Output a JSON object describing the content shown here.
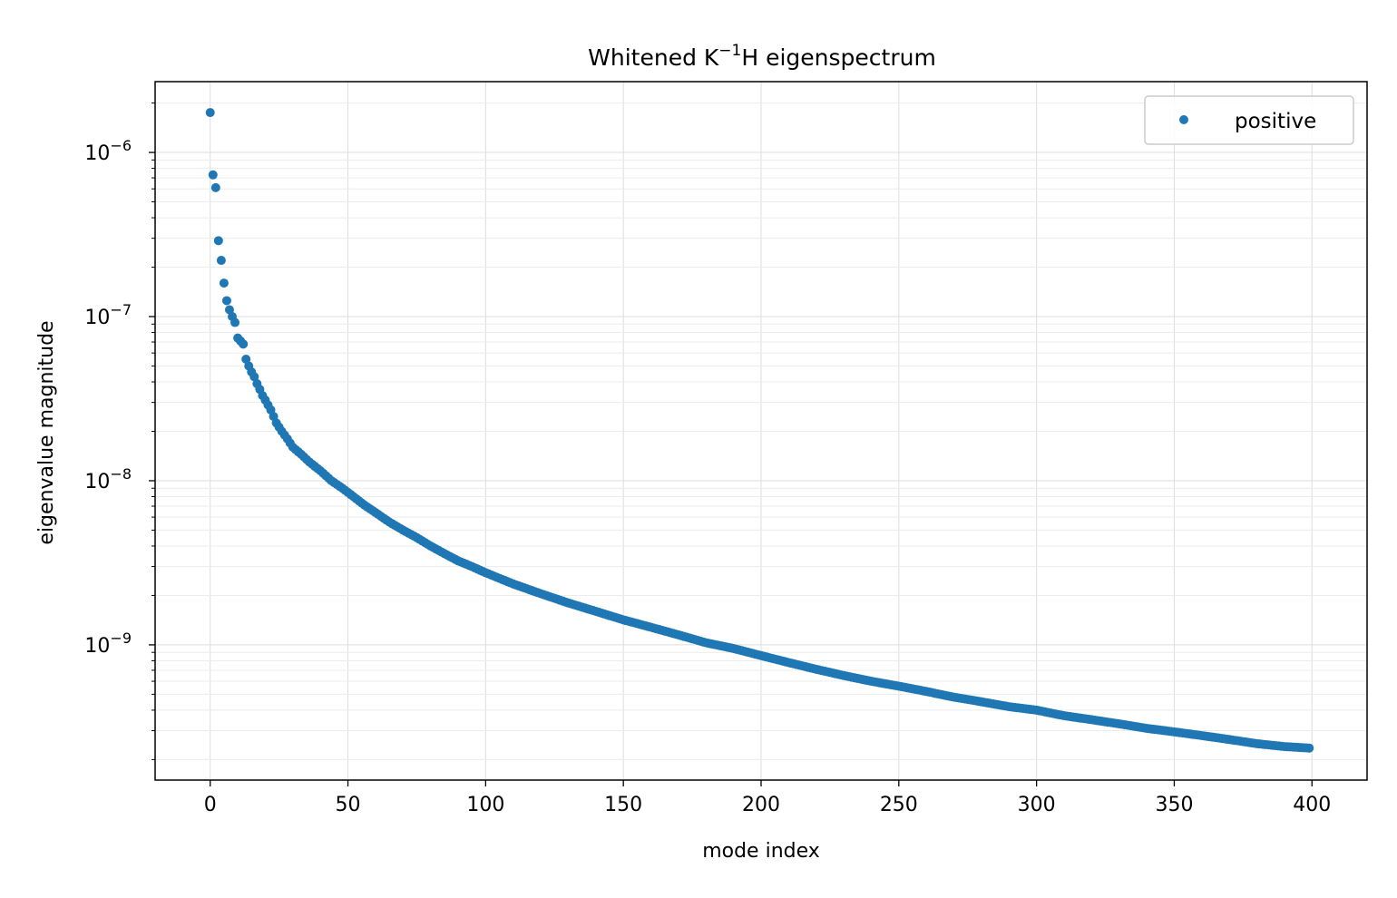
{
  "chart_data": {
    "type": "scatter",
    "title_main": "Whitened K",
    "title_sup": "−1",
    "title_rest": "H eigenspectrum",
    "xlabel": "mode index",
    "ylabel": "eigenvalue magnitude",
    "xlim": [
      -20,
      420
    ],
    "ylim": [
      1.5e-10,
      2.7e-06
    ],
    "yscale": "log",
    "grid": true,
    "legend_location": "top-right",
    "x_ticks": [
      "0",
      "50",
      "100",
      "150",
      "200",
      "250",
      "300",
      "350",
      "400"
    ],
    "y_ticks": [
      {
        "base": "10",
        "exp": "−6"
      },
      {
        "base": "10",
        "exp": "−7"
      },
      {
        "base": "10",
        "exp": "−8"
      },
      {
        "base": "10",
        "exp": "−9"
      }
    ],
    "colors": {
      "series": "#1f77b4"
    },
    "series": [
      {
        "name": "positive",
        "x": [
          0,
          1,
          2,
          3,
          4,
          5,
          6,
          7,
          8,
          9,
          10,
          11,
          12,
          13,
          14,
          15,
          16,
          17,
          18,
          19,
          20,
          22,
          24,
          26,
          28,
          30,
          33,
          36,
          40,
          44,
          48,
          52,
          56,
          60,
          65,
          70,
          75,
          80,
          85,
          90,
          95,
          100,
          110,
          120,
          130,
          140,
          150,
          160,
          170,
          180,
          190,
          200,
          210,
          220,
          230,
          240,
          250,
          260,
          270,
          280,
          290,
          300,
          310,
          320,
          330,
          340,
          350,
          360,
          370,
          380,
          390,
          399
        ],
        "y": [
          1.75e-06,
          7.3e-07,
          6.1e-07,
          2.9e-07,
          2.2e-07,
          1.6e-07,
          1.25e-07,
          1.1e-07,
          1e-07,
          9.2e-08,
          7.4e-08,
          7.1e-08,
          6.8e-08,
          5.5e-08,
          5e-08,
          4.6e-08,
          4.3e-08,
          3.9e-08,
          3.6e-08,
          3.3e-08,
          3.1e-08,
          2.7e-08,
          2.25e-08,
          2e-08,
          1.8e-08,
          1.6e-08,
          1.45e-08,
          1.3e-08,
          1.15e-08,
          1e-08,
          9e-09,
          8e-09,
          7.1e-09,
          6.4e-09,
          5.6e-09,
          5e-09,
          4.5e-09,
          4e-09,
          3.6e-09,
          3.25e-09,
          3e-09,
          2.75e-09,
          2.35e-09,
          2.05e-09,
          1.8e-09,
          1.6e-09,
          1.42e-09,
          1.28e-09,
          1.15e-09,
          1.03e-09,
          9.5e-10,
          8.6e-10,
          7.8e-10,
          7.1e-10,
          6.5e-10,
          6e-10,
          5.6e-10,
          5.2e-10,
          4.8e-10,
          4.5e-10,
          4.2e-10,
          4e-10,
          3.7e-10,
          3.5e-10,
          3.3e-10,
          3.1e-10,
          2.95e-10,
          2.8e-10,
          2.65e-10,
          2.5e-10,
          2.4e-10,
          2.35e-10
        ]
      }
    ]
  }
}
